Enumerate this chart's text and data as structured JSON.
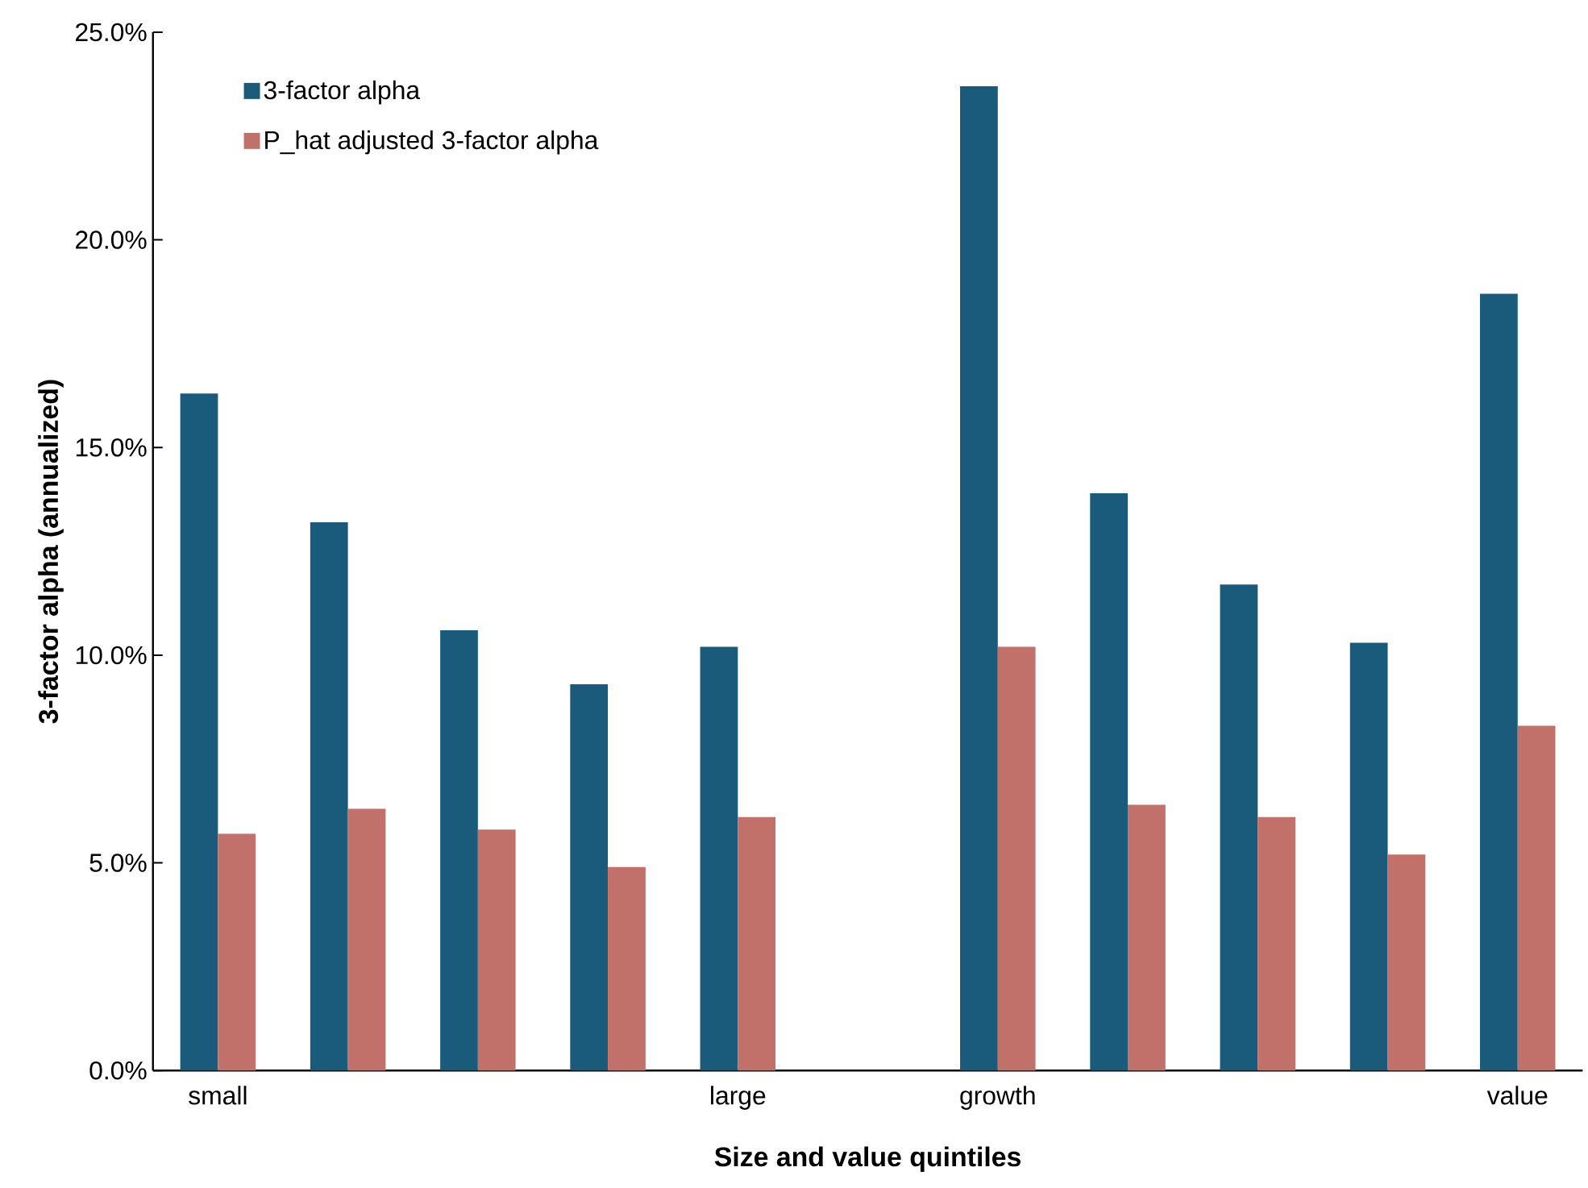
{
  "chart_data": {
    "type": "bar",
    "xlabel": "Size and value quintiles",
    "ylabel": "3-factor alpha (annualized)",
    "categories": [
      "small",
      null,
      null,
      null,
      "large",
      null,
      "growth",
      null,
      null,
      null,
      "value"
    ],
    "series": [
      {
        "name": "3-factor alpha",
        "color": "#1a5a7a",
        "values": [
          16.3,
          13.2,
          10.6,
          9.3,
          10.2,
          null,
          23.7,
          13.9,
          11.7,
          10.3,
          18.7
        ]
      },
      {
        "name": "P_hat adjusted 3-factor alpha",
        "color": "#c2706a",
        "values": [
          5.7,
          6.3,
          5.8,
          4.9,
          6.1,
          null,
          10.2,
          6.4,
          6.1,
          5.2,
          8.3
        ]
      }
    ],
    "ylim": [
      0,
      25
    ],
    "yticks": [
      {
        "value": 0,
        "label": "0.0%"
      },
      {
        "value": 5,
        "label": "5.0%"
      },
      {
        "value": 10,
        "label": "10.0%"
      },
      {
        "value": 15,
        "label": "15.0%"
      },
      {
        "value": 20,
        "label": "20.0%"
      },
      {
        "value": 25,
        "label": "25.0%"
      }
    ],
    "legend": "top left",
    "grid": false
  }
}
